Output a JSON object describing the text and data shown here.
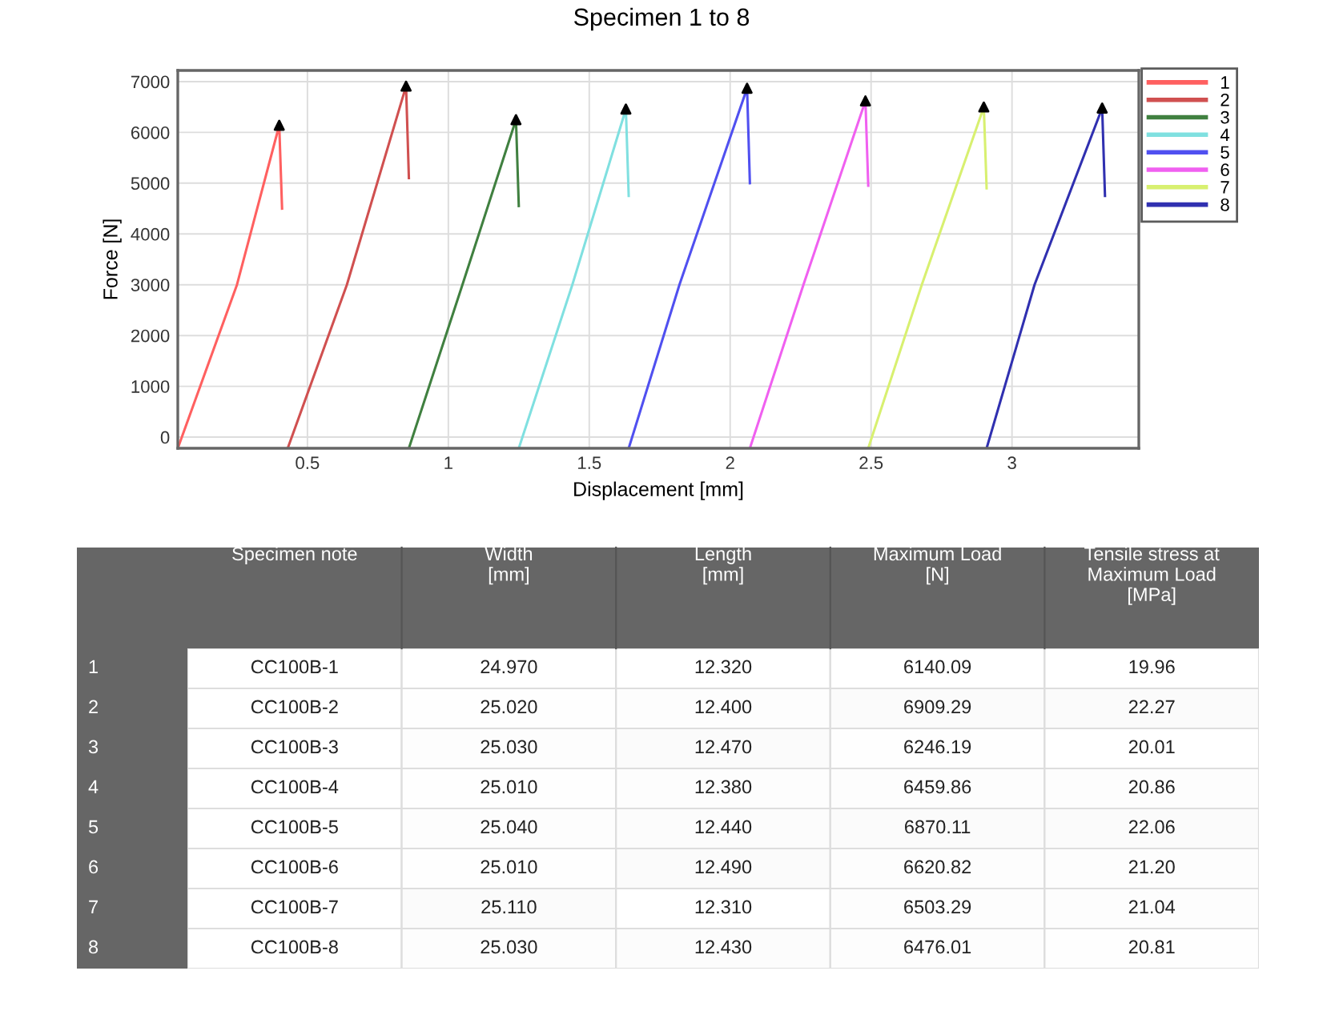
{
  "chart_data": [
    {
      "type": "line",
      "title": "Specimen 1 to 8",
      "xlabel": "Displacement [mm]",
      "ylabel": "Force [N]",
      "xlim": [
        0.04,
        3.45
      ],
      "ylim": [
        -220,
        7220
      ],
      "xticks": [
        0.5,
        1,
        1.5,
        2,
        2.5,
        3
      ],
      "yticks": [
        0,
        1000,
        2000,
        3000,
        4000,
        5000,
        6000,
        7000
      ],
      "grid": true,
      "legend": "top right",
      "marker": "none",
      "line_style": "solid",
      "series": [
        {
          "name": "1",
          "color": "#ff6060",
          "x": [
            0.04,
            0.25,
            0.4,
            0.41
          ],
          "values": [
            -220,
            3000,
            6140,
            4500
          ]
        },
        {
          "name": "2",
          "color": "#d05050",
          "x": [
            0.43,
            0.64,
            0.85,
            0.86
          ],
          "values": [
            -220,
            3000,
            6910,
            5100
          ]
        },
        {
          "name": "3",
          "color": "#408040",
          "x": [
            0.86,
            1.05,
            1.24,
            1.25
          ],
          "values": [
            -220,
            3000,
            6250,
            4550
          ]
        },
        {
          "name": "4",
          "color": "#80e0e0",
          "x": [
            1.25,
            1.44,
            1.63,
            1.64
          ],
          "values": [
            -220,
            3000,
            6460,
            4750
          ]
        },
        {
          "name": "5",
          "color": "#5050f0",
          "x": [
            1.64,
            1.82,
            2.06,
            2.07
          ],
          "values": [
            -220,
            3000,
            6870,
            5000
          ]
        },
        {
          "name": "6",
          "color": "#f060f0",
          "x": [
            2.07,
            2.26,
            2.48,
            2.49
          ],
          "values": [
            -220,
            3000,
            6620,
            4950
          ]
        },
        {
          "name": "7",
          "color": "#d8f070",
          "x": [
            2.49,
            2.68,
            2.9,
            2.91
          ],
          "values": [
            -220,
            3000,
            6500,
            4900
          ]
        },
        {
          "name": "8",
          "color": "#3030b0",
          "x": [
            2.91,
            3.08,
            3.32,
            3.33
          ],
          "values": [
            -220,
            3000,
            6480,
            4750
          ]
        },
        {
          "type": "scatter",
          "color": "#000000",
          "marker": "triangle",
          "x": [
            0.4,
            0.85,
            1.24,
            1.63,
            2.06,
            2.48,
            2.9,
            3.32
          ],
          "values": [
            6140,
            6910,
            6250,
            6460,
            6870,
            6620,
            6500,
            6480
          ]
        }
      ]
    },
    {
      "type": "heatmap",
      "categories": [
        "Specimen note",
        "Width\n[mm]",
        "Length\n[mm]",
        "Maximum Load\n[N]",
        "Tensile stress at\nMaximum Load\n[MPa]"
      ],
      "y_categories": [
        "1",
        "2",
        "3",
        "4",
        "5",
        "6",
        "7",
        "8"
      ],
      "cells": [
        [
          null,
          24.97,
          12.32,
          6140.09,
          19.96
        ],
        [
          null,
          25.02,
          12.4,
          6909.29,
          22.27
        ],
        [
          null,
          25.03,
          12.47,
          6246.19,
          20.01
        ],
        [
          null,
          25.01,
          12.38,
          6459.86,
          20.86
        ],
        [
          null,
          25.04,
          12.44,
          6870.11,
          22.06
        ],
        [
          null,
          25.01,
          12.49,
          6620.82,
          21.2
        ],
        [
          null,
          25.11,
          12.31,
          6503.29,
          21.04
        ],
        [
          null,
          25.03,
          12.43,
          6476.01,
          20.81
        ]
      ],
      "cell_labels": [
        [
          "CC100B-1",
          "24.970",
          "12.320",
          "6140.09",
          "19.96"
        ],
        [
          "CC100B-2",
          "25.020",
          "12.400",
          "6909.29",
          "22.27"
        ],
        [
          "CC100B-3",
          "25.030",
          "12.470",
          "6246.19",
          "20.01"
        ],
        [
          "CC100B-4",
          "25.010",
          "12.380",
          "6459.86",
          "20.86"
        ],
        [
          "CC100B-5",
          "25.040",
          "12.440",
          "6870.11",
          "22.06"
        ],
        [
          "CC100B-6",
          "25.010",
          "12.490",
          "6620.82",
          "21.20"
        ],
        [
          "CC100B-7",
          "25.110",
          "12.310",
          "6503.29",
          "21.04"
        ],
        [
          "CC100B-8",
          "25.030",
          "12.430",
          "6476.01",
          "20.81"
        ]
      ]
    }
  ]
}
